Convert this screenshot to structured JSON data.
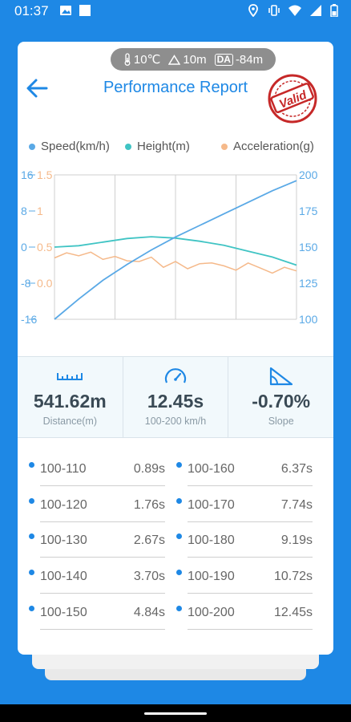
{
  "status_bar": {
    "time": "01:37",
    "left_icons": [
      "image-icon",
      "square-icon"
    ],
    "right_icons": [
      "location-icon",
      "vibrate-icon",
      "wifi-icon",
      "signal-icon",
      "battery-icon"
    ]
  },
  "environment": {
    "temperature": "10℃",
    "altitude": "10m",
    "density_altitude_badge": "DA",
    "density_altitude": "-84m"
  },
  "header": {
    "title": "Performance Report",
    "stamp_text": "Valid"
  },
  "colors": {
    "accent": "#1e88e5",
    "speed": "#5aa9e6",
    "height": "#40c4c4",
    "acceleration": "#f5b98a",
    "stamp": "#c62828"
  },
  "chart_data": {
    "type": "line",
    "legend": [
      "Speed(km/h)",
      "Height(m)",
      "Acceleration(g)"
    ],
    "left_axis_height_ticks": [
      "16",
      "8",
      "0",
      "-8",
      "-16"
    ],
    "left_axis_accel_ticks": [
      "1.5",
      "1",
      "0.5",
      "0.0"
    ],
    "right_axis_speed_ticks": [
      "200",
      "175",
      "150",
      "125",
      "100"
    ],
    "speed_range": [
      100,
      200
    ],
    "height_range": [
      -16,
      16
    ],
    "accel_range": [
      -0.5,
      1.5
    ],
    "grid": true,
    "series": [
      {
        "name": "Speed(km/h)",
        "axis": "right",
        "x": [
          0,
          1,
          2,
          3,
          4,
          5,
          6,
          7,
          8,
          9,
          10
        ],
        "values": [
          100,
          114,
          127,
          138,
          148,
          157,
          165,
          173,
          181,
          189,
          196
        ]
      },
      {
        "name": "Height(m)",
        "axis": "left",
        "x": [
          0,
          1,
          2,
          3,
          4,
          5,
          6,
          7,
          8,
          9,
          10
        ],
        "values": [
          0,
          0.3,
          1.1,
          1.9,
          2.3,
          2.0,
          1.3,
          0.4,
          -0.9,
          -2.2,
          -4.0
        ]
      },
      {
        "name": "Acceleration(g)",
        "axis": "left",
        "x": [
          0,
          0.5,
          1,
          1.5,
          2,
          2.5,
          3,
          3.5,
          4,
          4.5,
          5,
          5.5,
          6,
          6.5,
          7,
          7.5,
          8,
          8.5,
          9,
          9.5,
          10
        ],
        "values": [
          0.35,
          0.42,
          0.38,
          0.43,
          0.33,
          0.37,
          0.31,
          0.3,
          0.36,
          0.22,
          0.3,
          0.2,
          0.27,
          0.28,
          0.24,
          0.18,
          0.28,
          0.21,
          0.14,
          0.22,
          0.17
        ]
      }
    ]
  },
  "summary": [
    {
      "icon": "ruler-icon",
      "value": "541.62m",
      "label": "Distance(m)"
    },
    {
      "icon": "speedometer-icon",
      "value": "12.45s",
      "label": "100-200 km/h"
    },
    {
      "icon": "slope-icon",
      "value": "-0.70%",
      "label": "Slope"
    }
  ],
  "times": [
    {
      "range": "100-110",
      "value": "0.89s"
    },
    {
      "range": "100-160",
      "value": "6.37s"
    },
    {
      "range": "100-120",
      "value": "1.76s"
    },
    {
      "range": "100-170",
      "value": "7.74s"
    },
    {
      "range": "100-130",
      "value": "2.67s"
    },
    {
      "range": "100-180",
      "value": "9.19s"
    },
    {
      "range": "100-140",
      "value": "3.70s"
    },
    {
      "range": "100-190",
      "value": "10.72s"
    },
    {
      "range": "100-150",
      "value": "4.84s"
    },
    {
      "range": "100-200",
      "value": "12.45s"
    }
  ]
}
